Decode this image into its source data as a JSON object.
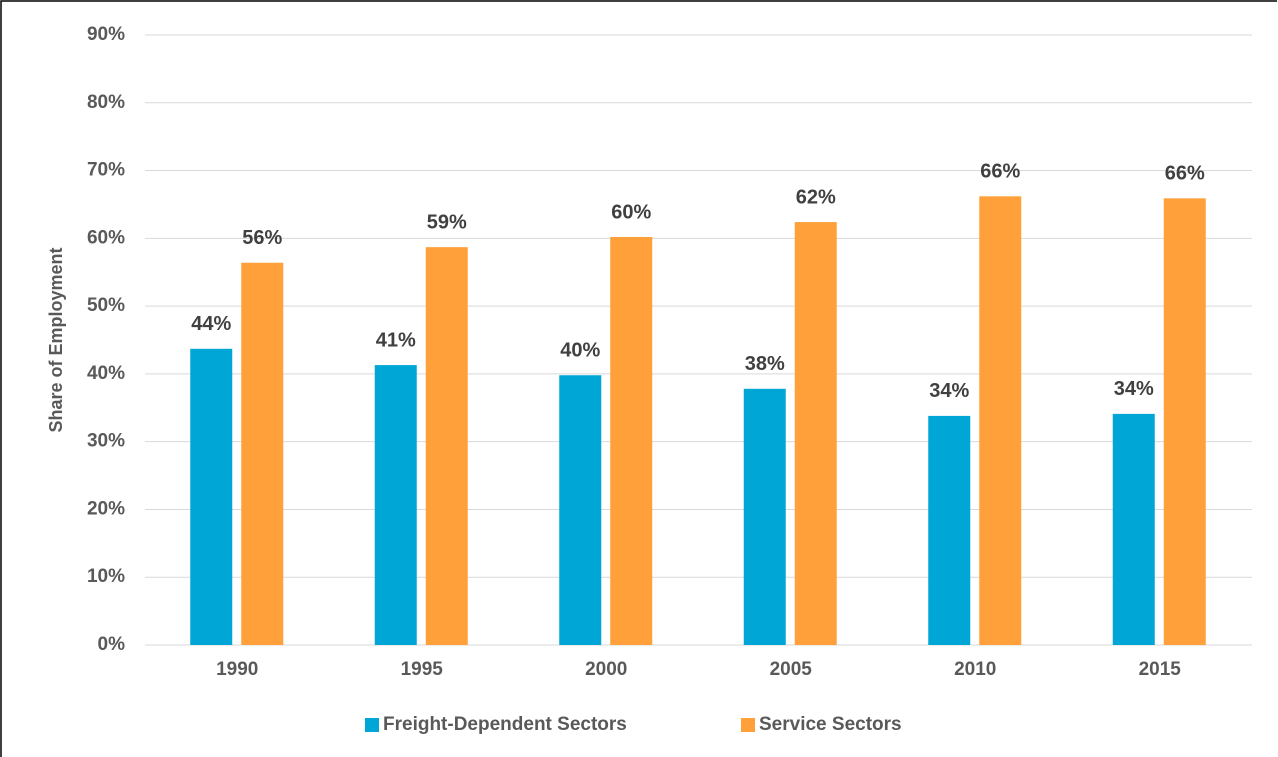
{
  "chart_data": {
    "type": "bar",
    "y_label": "Share of Employment",
    "categories": [
      "1990",
      "1995",
      "2000",
      "2005",
      "2010",
      "2015"
    ],
    "series": [
      {
        "name": "Freight-Dependent Sectors",
        "color": "#00a6d6",
        "values": [
          43.7,
          41.3,
          39.8,
          37.8,
          33.8,
          34.1
        ],
        "value_labels": [
          "44%",
          "41%",
          "40%",
          "38%",
          "34%",
          "34%"
        ]
      },
      {
        "name": "Service Sectors",
        "color": "#ffa03a",
        "values": [
          56.4,
          58.7,
          60.2,
          62.4,
          66.2,
          65.9
        ],
        "value_labels": [
          "56%",
          "59%",
          "60%",
          "62%",
          "66%",
          "66%"
        ]
      }
    ],
    "ylim": [
      0,
      90
    ],
    "yticks": [
      {
        "value": 0,
        "label": "0%"
      },
      {
        "value": 10,
        "label": "10%"
      },
      {
        "value": 20,
        "label": "20%"
      },
      {
        "value": 30,
        "label": "30%"
      },
      {
        "value": 40,
        "label": "40%"
      },
      {
        "value": 50,
        "label": "50%"
      },
      {
        "value": 60,
        "label": "60%"
      },
      {
        "value": 70,
        "label": "70%"
      },
      {
        "value": 80,
        "label": "80%"
      },
      {
        "value": 90,
        "label": "90%"
      }
    ],
    "grid": true,
    "legend": "bottom"
  }
}
